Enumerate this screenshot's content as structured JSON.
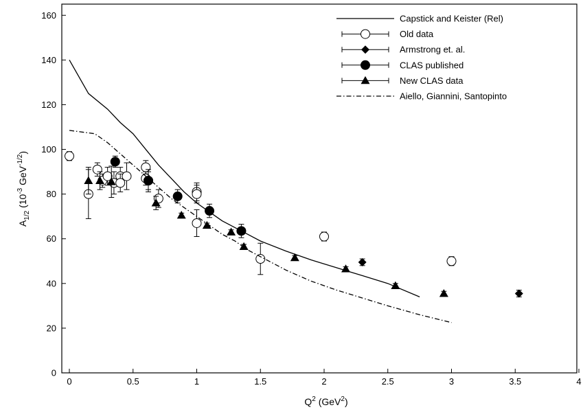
{
  "chart_data": {
    "type": "scatter",
    "x_axis": {
      "min": 0,
      "max": 4,
      "ticks": [
        "0",
        "0.5",
        "1",
        "1.5",
        "2",
        "2.5",
        "3",
        "3.5",
        "4"
      ],
      "label_main": "Q",
      "label_sup": "2",
      "label_rest": " (GeV",
      "label_sup2": "2",
      "label_end": ")"
    },
    "y_axis": {
      "min": 0,
      "max": 165,
      "ticks": [
        "0",
        "20",
        "40",
        "60",
        "80",
        "100",
        "120",
        "140",
        "160"
      ],
      "label_main": "A",
      "label_sub": "1/2",
      "label_mid": " (10",
      "label_sup": "-3",
      "label_rest": " GeV",
      "label_sup2": "-1/2",
      "label_end": ")"
    },
    "legend_position": "top-right",
    "grid": false,
    "series": [
      {
        "name": "Capstick and Keister (Rel)",
        "kind": "line",
        "dash": "solid",
        "points": [
          [
            0,
            140
          ],
          [
            0.15,
            125
          ],
          [
            0.3,
            118
          ],
          [
            0.4,
            112
          ],
          [
            0.5,
            107
          ],
          [
            0.6,
            100
          ],
          [
            0.7,
            93
          ],
          [
            0.8,
            87
          ],
          [
            0.9,
            81
          ],
          [
            1.0,
            76
          ],
          [
            1.1,
            72
          ],
          [
            1.2,
            68
          ],
          [
            1.3,
            65
          ],
          [
            1.4,
            62
          ],
          [
            1.5,
            59
          ],
          [
            1.7,
            54.5
          ],
          [
            1.9,
            50.5
          ],
          [
            2.1,
            47
          ],
          [
            2.3,
            43.5
          ],
          [
            2.5,
            40
          ],
          [
            2.75,
            34
          ]
        ]
      },
      {
        "name": "Old data",
        "kind": "marker",
        "marker": "open-circle",
        "points": [
          [
            0,
            97,
            2
          ],
          [
            0.15,
            80,
            11
          ],
          [
            0.22,
            91,
            3
          ],
          [
            0.26,
            86,
            3
          ],
          [
            0.3,
            88,
            4
          ],
          [
            0.35,
            85,
            5
          ],
          [
            0.4,
            88,
            4
          ],
          [
            0.4,
            85,
            4
          ],
          [
            0.45,
            88,
            6
          ],
          [
            0.6,
            92,
            3
          ],
          [
            0.6,
            87,
            3
          ],
          [
            0.62,
            86,
            5
          ],
          [
            0.7,
            78,
            4
          ],
          [
            1.0,
            81,
            4
          ],
          [
            1.0,
            80,
            4
          ],
          [
            1.0,
            67,
            6
          ],
          [
            1.5,
            51,
            7
          ],
          [
            2.0,
            61,
            2
          ],
          [
            3.0,
            50,
            2
          ]
        ]
      },
      {
        "name": "Armstrong et. al.",
        "kind": "marker",
        "marker": "diamond",
        "points": [
          [
            2.3,
            49.5,
            1.5
          ],
          [
            3.53,
            35.5,
            1.5
          ]
        ]
      },
      {
        "name": "CLAS published",
        "kind": "marker",
        "marker": "filled-circle",
        "points": [
          [
            0.36,
            94.5,
            2.5
          ],
          [
            0.62,
            86,
            4
          ],
          [
            0.85,
            79,
            3
          ],
          [
            1.1,
            72.5,
            3
          ],
          [
            1.35,
            63.5,
            3
          ]
        ]
      },
      {
        "name": "New CLAS data",
        "kind": "marker",
        "marker": "triangle",
        "points": [
          [
            0.15,
            86,
            6
          ],
          [
            0.24,
            86,
            4
          ],
          [
            0.33,
            85.5,
            7
          ],
          [
            0.68,
            76,
            3
          ],
          [
            0.88,
            70.5,
            1
          ],
          [
            1.08,
            66,
            1
          ],
          [
            1.27,
            63,
            1
          ],
          [
            1.37,
            56.5,
            1
          ],
          [
            1.77,
            51.5,
            1
          ],
          [
            2.17,
            46.5,
            1
          ],
          [
            2.56,
            39,
            1
          ],
          [
            2.94,
            35.5,
            1
          ]
        ]
      },
      {
        "name": "Aiello, Giannini, Santopinto",
        "kind": "line",
        "dash": "dashdot",
        "points": [
          [
            0,
            108.5
          ],
          [
            0.2,
            107
          ],
          [
            0.3,
            103
          ],
          [
            0.4,
            98
          ],
          [
            0.5,
            93
          ],
          [
            0.6,
            88
          ],
          [
            0.7,
            83
          ],
          [
            0.8,
            78
          ],
          [
            0.9,
            74
          ],
          [
            1.0,
            70
          ],
          [
            1.1,
            66
          ],
          [
            1.2,
            62
          ],
          [
            1.3,
            59
          ],
          [
            1.4,
            55
          ],
          [
            1.5,
            52
          ],
          [
            1.7,
            46
          ],
          [
            1.9,
            41
          ],
          [
            2.1,
            37
          ],
          [
            2.3,
            33.5
          ],
          [
            2.5,
            30
          ],
          [
            2.75,
            26
          ],
          [
            3.0,
            22.5
          ]
        ]
      }
    ]
  }
}
